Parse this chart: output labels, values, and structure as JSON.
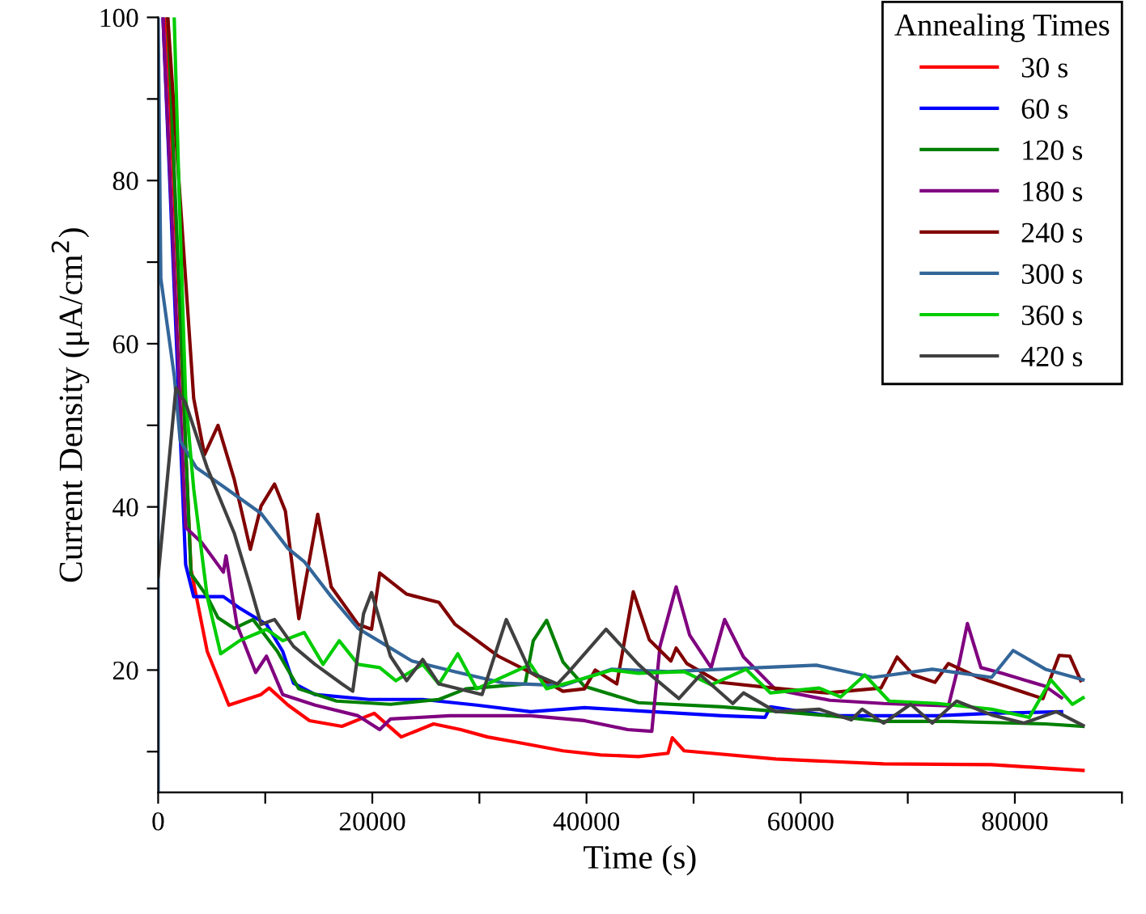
{
  "chart_data": {
    "type": "line",
    "xlabel": "Time (s)",
    "ylabel": "Current Density (μA/cm$^{2}$)",
    "legend_title": "Annealing Times",
    "legend": "top right",
    "grid": false,
    "xlim": [
      0,
      90000
    ],
    "ylim": [
      5,
      100
    ],
    "xticks": [
      0,
      {
        "value": 10000,
        "label": null
      },
      20000,
      {
        "value": 30000,
        "label": null
      },
      40000,
      {
        "value": 50000,
        "label": null
      },
      60000,
      {
        "value": 70000,
        "label": null
      },
      80000,
      {
        "value": 90000,
        "label": null
      }
    ],
    "yticks": [
      {
        "value": 10,
        "label": null
      },
      20,
      {
        "value": 30,
        "label": null
      },
      40,
      {
        "value": 50,
        "label": null
      },
      60,
      {
        "value": 70,
        "label": null
      },
      80,
      {
        "value": 90,
        "label": null
      },
      100
    ],
    "series": [
      {
        "name": "30 s",
        "color": "#ff0000",
        "x": [
          750,
          3070,
          4580,
          6600,
          9600,
          10370,
          12130,
          14140,
          17160,
          20180,
          22700,
          25720,
          28240,
          30760,
          33750,
          37800,
          41330,
          44850,
          47610,
          48010,
          49120,
          57680,
          67750,
          77830,
          86370
        ],
        "values": [
          100,
          32.3,
          22.3,
          15.7,
          17.0,
          17.8,
          15.7,
          13.8,
          13.1,
          14.7,
          11.8,
          13.4,
          12.7,
          11.8,
          11.1,
          10.1,
          9.6,
          9.4,
          9.8,
          11.7,
          10.1,
          9.1,
          8.5,
          8.4,
          7.7
        ]
      },
      {
        "name": "60 s",
        "color": "#0000ff",
        "x": [
          450,
          2570,
          3320,
          6090,
          7600,
          10120,
          11630,
          12640,
          14650,
          19680,
          24710,
          29740,
          34780,
          39810,
          44850,
          52650,
          56680,
          57180,
          62720,
          72780,
          77820,
          84360
        ],
        "values": [
          100,
          32.9,
          29.0,
          29.0,
          27.6,
          25.6,
          22.3,
          18.4,
          17.0,
          16.4,
          16.4,
          15.7,
          14.9,
          15.4,
          15.0,
          14.4,
          14.2,
          15.5,
          14.4,
          14.4,
          14.7,
          14.9
        ]
      },
      {
        "name": "120 s",
        "color": "#008000",
        "x": [
          900,
          3070,
          4580,
          5590,
          7100,
          8860,
          11130,
          13140,
          16660,
          21690,
          26220,
          28740,
          34270,
          35030,
          36280,
          37800,
          39810,
          44850,
          52650,
          62720,
          67750,
          73800,
          82860,
          86370
        ],
        "values": [
          100,
          31.8,
          29.0,
          26.4,
          25.1,
          26.2,
          22.3,
          17.7,
          16.2,
          15.8,
          16.4,
          17.7,
          18.3,
          23.6,
          26.1,
          21.0,
          18.0,
          16.0,
          15.5,
          14.4,
          13.7,
          13.7,
          13.4,
          13.1
        ]
      },
      {
        "name": "180 s",
        "color": "#800080",
        "x": [
          450,
          2570,
          4080,
          6090,
          6340,
          7350,
          9110,
          10120,
          11630,
          14650,
          18670,
          20690,
          21690,
          27220,
          34780,
          39810,
          43840,
          46100,
          46860,
          48370,
          49630,
          51640,
          52900,
          54660,
          57680,
          62720,
          67750,
          73800,
          74810,
          75570,
          76830,
          78840,
          82860,
          84360
        ],
        "values": [
          100,
          37.5,
          35.6,
          32.0,
          34.0,
          25.6,
          19.7,
          21.7,
          17.0,
          15.7,
          14.4,
          12.7,
          14.0,
          14.4,
          14.4,
          13.8,
          12.7,
          12.5,
          22.9,
          30.2,
          24.3,
          20.3,
          26.2,
          21.6,
          17.6,
          16.3,
          15.9,
          15.6,
          20.9,
          25.7,
          20.3,
          19.6,
          18.0,
          16.6
        ]
      },
      {
        "name": "240 s",
        "color": "#800000",
        "x": [
          900,
          3320,
          4330,
          5590,
          7100,
          8610,
          9610,
          10870,
          11880,
          13140,
          14900,
          16160,
          18670,
          19930,
          20690,
          23210,
          26220,
          27730,
          31760,
          34780,
          37800,
          39810,
          40820,
          42830,
          44370,
          45870,
          47880,
          48370,
          49370,
          52400,
          57440,
          62470,
          67500,
          69010,
          70520,
          72540,
          73800,
          76570,
          82620,
          84130,
          85140,
          86150
        ],
        "values": [
          100,
          53.3,
          46.4,
          50.0,
          43.4,
          34.8,
          40.1,
          42.8,
          39.5,
          26.3,
          39.1,
          30.2,
          25.6,
          25.0,
          31.9,
          29.3,
          28.3,
          25.6,
          21.7,
          19.7,
          17.4,
          17.7,
          20.0,
          18.3,
          29.6,
          23.7,
          21.1,
          22.7,
          20.8,
          18.5,
          17.8,
          17.2,
          17.8,
          21.6,
          19.4,
          18.5,
          20.8,
          19.1,
          16.5,
          21.8,
          21.7,
          18.7
        ]
      },
      {
        "name": "300 s",
        "color": "#336699",
        "x": [
          0,
          0,
          250,
          1510,
          2060,
          3570,
          6090,
          9610,
          12130,
          13640,
          16160,
          18670,
          21190,
          23710,
          27730,
          32260,
          37800,
          42330,
          47610,
          52650,
          61460,
          66740,
          72290,
          77820,
          79840,
          82860,
          86370
        ],
        "values": [
          5,
          100,
          68.0,
          56.0,
          48.1,
          44.8,
          42.5,
          39.2,
          34.9,
          33.3,
          29.0,
          25.1,
          23.1,
          21.1,
          19.8,
          18.4,
          18.1,
          20.1,
          19.8,
          20.1,
          20.6,
          19.1,
          20.1,
          19.1,
          22.4,
          20.1,
          18.8
        ]
      },
      {
        "name": "360 s",
        "color": "#00cc00",
        "x": [
          1500,
          1960,
          2570,
          3320,
          4580,
          5840,
          7600,
          10120,
          11630,
          13640,
          15400,
          16910,
          18670,
          20690,
          22200,
          24710,
          26220,
          27980,
          29740,
          34780,
          36280,
          39810,
          42330,
          44850,
          49120,
          51640,
          54910,
          57180,
          61710,
          63730,
          65990,
          68260,
          72790,
          77830,
          81350,
          83370,
          85380,
          86370
        ],
        "values": [
          100,
          78.4,
          53.3,
          42.2,
          29.0,
          22.0,
          23.6,
          25.0,
          23.6,
          24.6,
          20.7,
          23.6,
          20.7,
          20.3,
          18.7,
          20.7,
          18.3,
          22.0,
          17.7,
          20.7,
          17.7,
          19.0,
          20.0,
          19.6,
          19.8,
          18.2,
          20.1,
          17.2,
          17.8,
          16.7,
          19.4,
          16.2,
          15.9,
          15.2,
          14.2,
          18.8,
          15.8,
          16.6
        ]
      },
      {
        "name": "420 s",
        "color": "#404040",
        "x": [
          0,
          1660,
          2570,
          4580,
          7100,
          8610,
          9610,
          10870,
          12640,
          14650,
          17160,
          18170,
          19180,
          19930,
          21690,
          23210,
          24710,
          26220,
          30250,
          32510,
          34780,
          37290,
          38300,
          41830,
          44850,
          45610,
          48630,
          50640,
          53660,
          54660,
          57680,
          61710,
          64730,
          65740,
          67750,
          70270,
          72290,
          74560,
          77830,
          80850,
          83870,
          86370
        ],
        "values": [
          31.5,
          54.6,
          52.7,
          44.8,
          36.8,
          30.2,
          25.6,
          26.2,
          22.9,
          20.7,
          18.3,
          17.4,
          26.9,
          29.5,
          21.7,
          18.7,
          21.3,
          18.3,
          17.0,
          26.2,
          19.7,
          18.3,
          19.7,
          25.0,
          20.7,
          19.8,
          16.5,
          19.4,
          15.9,
          17.2,
          14.9,
          15.2,
          13.9,
          15.2,
          13.5,
          15.8,
          13.5,
          16.2,
          14.5,
          13.5,
          14.9,
          13.2
        ]
      }
    ]
  }
}
